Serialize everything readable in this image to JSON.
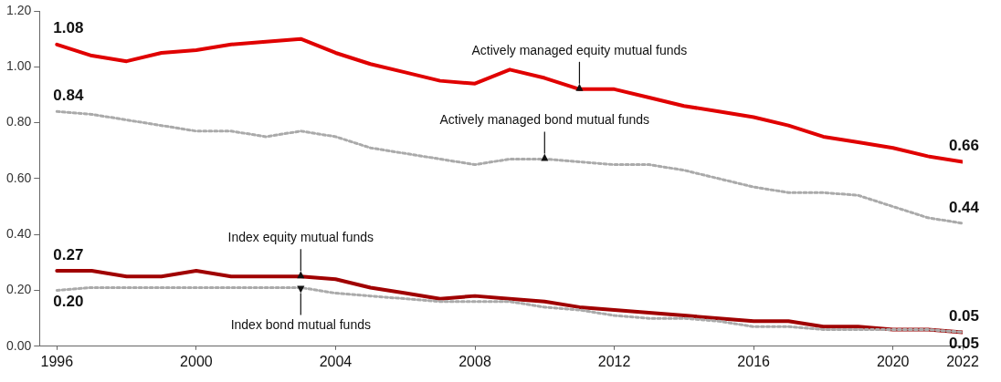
{
  "chart_data": {
    "type": "line",
    "x": [
      1996,
      1997,
      1998,
      1999,
      2000,
      2001,
      2002,
      2003,
      2004,
      2005,
      2006,
      2007,
      2008,
      2009,
      2010,
      2011,
      2012,
      2013,
      2014,
      2015,
      2016,
      2017,
      2018,
      2019,
      2020,
      2021,
      2022
    ],
    "xlim": [
      1995.5,
      2022
    ],
    "xticks": [
      1996,
      2000,
      2004,
      2008,
      2012,
      2016,
      2020,
      2022
    ],
    "ylim": [
      0,
      1.2
    ],
    "yticks": [
      {
        "value": 0,
        "label": "0.00"
      },
      {
        "value": 0.2,
        "label": "0.20"
      },
      {
        "value": 0.4,
        "label": "0.40"
      },
      {
        "value": 0.6,
        "label": "0.60"
      },
      {
        "value": 0.8,
        "label": "0.80"
      },
      {
        "value": 1,
        "label": "1.00"
      },
      {
        "value": 1.2,
        "label": "1.20"
      }
    ],
    "grid": false,
    "legend": false,
    "marker": "none",
    "series": [
      {
        "color": "#e00000",
        "line_style": "solid",
        "values": [
          1.08,
          1.04,
          1.02,
          1.05,
          1.06,
          1.08,
          1.09,
          1.1,
          1.05,
          1.01,
          0.98,
          0.95,
          0.94,
          0.99,
          0.96,
          0.92,
          0.92,
          0.89,
          0.86,
          0.84,
          0.82,
          0.79,
          0.75,
          0.73,
          0.71,
          0.68,
          0.66
        ],
        "value_labels": [
          "1.08",
          null,
          null,
          null,
          null,
          null,
          null,
          null,
          null,
          null,
          null,
          null,
          null,
          null,
          null,
          null,
          null,
          null,
          null,
          null,
          null,
          null,
          null,
          null,
          null,
          null,
          "0.66"
        ]
      },
      {
        "color": "#aaaaaa",
        "line_style": "dotted",
        "values": [
          0.84,
          0.83,
          0.81,
          0.79,
          0.77,
          0.77,
          0.75,
          0.77,
          0.75,
          0.71,
          0.69,
          0.67,
          0.65,
          0.67,
          0.67,
          0.66,
          0.65,
          0.65,
          0.63,
          0.6,
          0.57,
          0.55,
          0.55,
          0.54,
          0.5,
          0.46,
          0.44
        ],
        "value_labels": [
          "0.84",
          null,
          null,
          null,
          null,
          null,
          null,
          null,
          null,
          null,
          null,
          null,
          null,
          null,
          null,
          null,
          null,
          null,
          null,
          null,
          null,
          null,
          null,
          null,
          null,
          null,
          "0.44"
        ]
      },
      {
        "color": "#a00000",
        "line_style": "solid",
        "values": [
          0.27,
          0.27,
          0.25,
          0.25,
          0.27,
          0.25,
          0.25,
          0.25,
          0.24,
          0.21,
          0.19,
          0.17,
          0.18,
          0.17,
          0.16,
          0.14,
          0.13,
          0.12,
          0.11,
          0.1,
          0.09,
          0.09,
          0.07,
          0.07,
          0.06,
          0.06,
          0.05
        ],
        "value_labels": [
          "0.27",
          null,
          null,
          null,
          null,
          null,
          null,
          null,
          null,
          null,
          null,
          null,
          null,
          null,
          null,
          null,
          null,
          null,
          null,
          null,
          null,
          null,
          null,
          null,
          null,
          null,
          "0.05"
        ]
      },
      {
        "color": "#aaaaaa",
        "line_style": "dotted",
        "values": [
          0.2,
          0.21,
          0.21,
          0.21,
          0.21,
          0.21,
          0.21,
          0.21,
          0.19,
          0.18,
          0.17,
          0.16,
          0.16,
          0.16,
          0.14,
          0.13,
          0.11,
          0.1,
          0.1,
          0.09,
          0.07,
          0.07,
          0.06,
          0.06,
          0.06,
          0.06,
          0.05
        ],
        "value_labels": [
          "0.20",
          null,
          null,
          null,
          null,
          null,
          null,
          null,
          null,
          null,
          null,
          null,
          null,
          null,
          null,
          null,
          null,
          null,
          null,
          null,
          null,
          null,
          null,
          null,
          null,
          null,
          "0.05"
        ]
      }
    ],
    "annotations": [
      {
        "text": "Actively managed equity mutual funds",
        "x": 2011,
        "y": 0.92
      },
      {
        "text": "Actively managed bond mutual funds",
        "x": 2010,
        "y": 0.67
      },
      {
        "text": "Index equity mutual funds",
        "x": 2003,
        "y": 0.25
      },
      {
        "text": "Index bond mutual funds",
        "x": 2003,
        "y": 0.21
      }
    ]
  }
}
